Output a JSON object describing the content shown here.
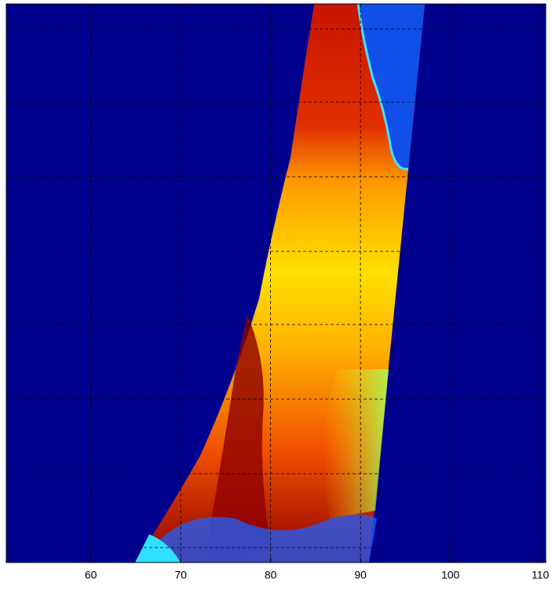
{
  "chart_data": {
    "type": "image",
    "background": "#00008f",
    "xlim": [
      50.6,
      110.6
    ],
    "xticks": [
      60,
      70,
      80,
      90,
      100,
      110
    ],
    "grid": true
  }
}
